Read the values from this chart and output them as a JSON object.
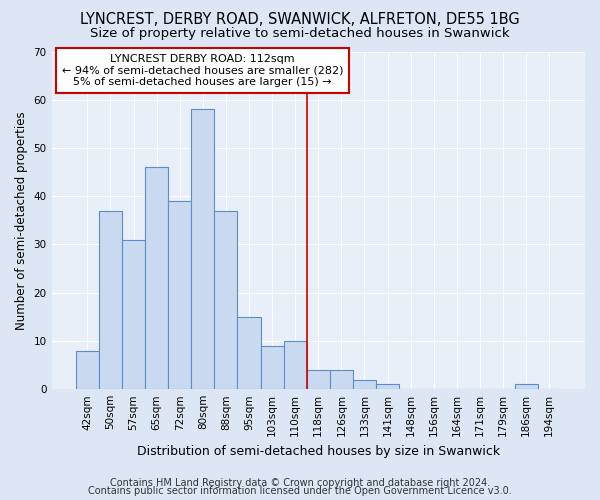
{
  "title": "LYNCREST, DERBY ROAD, SWANWICK, ALFRETON, DE55 1BG",
  "subtitle": "Size of property relative to semi-detached houses in Swanwick",
  "xlabel": "Distribution of semi-detached houses by size in Swanwick",
  "ylabel": "Number of semi-detached properties",
  "categories": [
    "42sqm",
    "50sqm",
    "57sqm",
    "65sqm",
    "72sqm",
    "80sqm",
    "88sqm",
    "95sqm",
    "103sqm",
    "110sqm",
    "118sqm",
    "126sqm",
    "133sqm",
    "141sqm",
    "148sqm",
    "156sqm",
    "164sqm",
    "171sqm",
    "179sqm",
    "186sqm",
    "194sqm"
  ],
  "values": [
    8,
    37,
    31,
    46,
    39,
    58,
    37,
    15,
    9,
    10,
    4,
    4,
    2,
    1,
    0,
    0,
    0,
    0,
    0,
    1,
    0
  ],
  "bar_color": "#c9daf0",
  "bar_edge_color": "#5b8dc8",
  "bar_linewidth": 0.8,
  "vline_x_index": 9.5,
  "vline_color": "#cc0000",
  "annotation_title": "LYNCREST DERBY ROAD: 112sqm",
  "annotation_line1": "← 94% of semi-detached houses are smaller (282)",
  "annotation_line2": "5% of semi-detached houses are larger (15) →",
  "annotation_box_color": "#ffffff",
  "annotation_box_edge_color": "#cc0000",
  "footer1": "Contains HM Land Registry data © Crown copyright and database right 2024.",
  "footer2": "Contains public sector information licensed under the Open Government Licence v3.0.",
  "background_color": "#dce6f5",
  "plot_background_color": "#e8eff8",
  "ylim": [
    0,
    70
  ],
  "yticks": [
    0,
    10,
    20,
    30,
    40,
    50,
    60,
    70
  ],
  "title_fontsize": 10.5,
  "subtitle_fontsize": 9.5,
  "xlabel_fontsize": 9,
  "ylabel_fontsize": 8.5,
  "tick_fontsize": 7.5,
  "annotation_fontsize": 8,
  "footer_fontsize": 7
}
